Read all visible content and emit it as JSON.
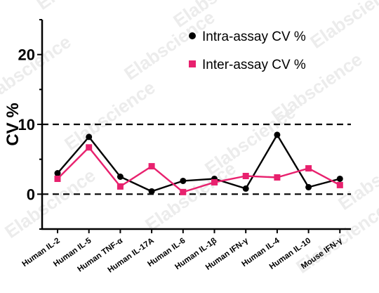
{
  "chart_data": {
    "type": "line",
    "title": "",
    "xlabel": "",
    "ylabel": "CV %",
    "ylim": [
      -5,
      25
    ],
    "yticks": [
      0,
      10,
      20
    ],
    "reference_lines": [
      0,
      10
    ],
    "categories": [
      "Human IL-2",
      "Human IL-5",
      "Human TNF-α",
      "Human IL-17A",
      "Human IL-6",
      "Human IL-1β",
      "Human IFN-γ",
      "Human IL-4",
      "Human IL-10",
      "Mouse IFN-γ"
    ],
    "series": [
      {
        "name": "Intra-assay CV %",
        "color": "#000000",
        "marker": "circle",
        "values": [
          3.0,
          8.2,
          2.5,
          0.4,
          1.9,
          2.2,
          0.8,
          8.5,
          1.0,
          2.2
        ]
      },
      {
        "name": "Inter-assay CV %",
        "color": "#e8216e",
        "marker": "square",
        "values": [
          2.2,
          6.7,
          1.1,
          4.0,
          0.3,
          1.7,
          2.6,
          2.4,
          3.7,
          1.3
        ]
      }
    ],
    "legend": "top-right",
    "grid": false
  },
  "watermark": {
    "text": "Elabscience"
  }
}
